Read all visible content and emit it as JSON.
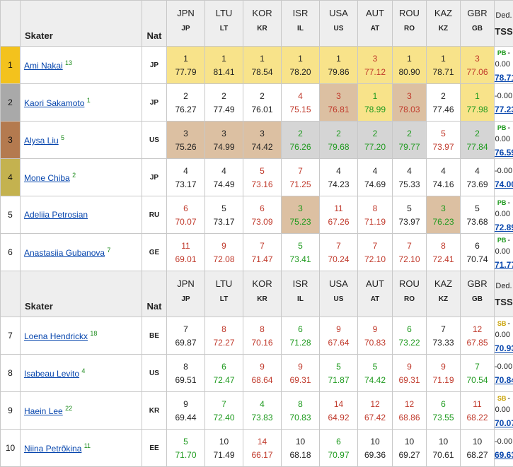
{
  "judges": [
    {
      "name": "JPN",
      "code": "JP"
    },
    {
      "name": "LTU",
      "code": "LT"
    },
    {
      "name": "KOR",
      "code": "KR"
    },
    {
      "name": "ISR",
      "code": "IL"
    },
    {
      "name": "USA",
      "code": "US"
    },
    {
      "name": "AUT",
      "code": "AT"
    },
    {
      "name": "ROU",
      "code": "RO"
    },
    {
      "name": "KAZ",
      "code": "KZ"
    },
    {
      "name": "GBR",
      "code": "GB"
    }
  ],
  "labels": {
    "skater": "Skater",
    "nat": "Nat",
    "ded": "Ded.",
    "tss": "TSS"
  },
  "colors": {
    "gold": "#f8e38a",
    "silver": "#d5d5d5",
    "bronze": "#dcc0a2",
    "rank1": "#f3c21d",
    "rank2": "#a9a9a9",
    "rank3": "#b47a4f",
    "rank4": "#c4b24f",
    "red": "#c0392b",
    "green": "#1e9a1e",
    "link": "#0645ad"
  },
  "groups": [
    {
      "rows": [
        {
          "rank": "1",
          "name": "Ami Nakai",
          "sup": "13",
          "nat": "JP",
          "badge": "PB",
          "ded": "-0.00",
          "tss": "78.71",
          "cells": [
            [
              "1",
              "77.79",
              "black",
              "gold"
            ],
            [
              "1",
              "81.41",
              "black",
              "gold"
            ],
            [
              "1",
              "78.54",
              "black",
              "gold"
            ],
            [
              "1",
              "78.20",
              "black",
              "gold"
            ],
            [
              "1",
              "79.86",
              "black",
              "gold"
            ],
            [
              "3",
              "77.12",
              "red",
              "gold"
            ],
            [
              "1",
              "80.90",
              "black",
              "gold"
            ],
            [
              "1",
              "78.71",
              "black",
              "gold"
            ],
            [
              "3",
              "77.06",
              "red",
              "gold"
            ]
          ]
        },
        {
          "rank": "2",
          "name": "Kaori Sakamoto",
          "sup": "1",
          "nat": "JP",
          "badge": "",
          "ded": "-0.00",
          "tss": "77.23",
          "cells": [
            [
              "2",
              "76.27",
              "black",
              "none"
            ],
            [
              "2",
              "77.49",
              "black",
              "none"
            ],
            [
              "2",
              "76.01",
              "black",
              "none"
            ],
            [
              "4",
              "75.15",
              "red",
              "none"
            ],
            [
              "3",
              "76.81",
              "red",
              "bronze"
            ],
            [
              "1",
              "78.99",
              "green",
              "gold"
            ],
            [
              "3",
              "78.03",
              "red",
              "bronze"
            ],
            [
              "2",
              "77.46",
              "black",
              "none"
            ],
            [
              "1",
              "77.98",
              "green",
              "gold"
            ]
          ]
        },
        {
          "rank": "3",
          "name": "Alysa Liu",
          "sup": "5",
          "nat": "US",
          "badge": "PB",
          "ded": "-0.00",
          "tss": "76.59",
          "cells": [
            [
              "3",
              "75.26",
              "black",
              "bronze"
            ],
            [
              "3",
              "74.99",
              "black",
              "bronze"
            ],
            [
              "3",
              "74.42",
              "black",
              "bronze"
            ],
            [
              "2",
              "76.26",
              "green",
              "silver"
            ],
            [
              "2",
              "79.68",
              "green",
              "silver"
            ],
            [
              "2",
              "77.20",
              "green",
              "silver"
            ],
            [
              "2",
              "79.77",
              "green",
              "silver"
            ],
            [
              "5",
              "73.97",
              "red",
              "none"
            ],
            [
              "2",
              "77.84",
              "green",
              "silver"
            ]
          ]
        },
        {
          "rank": "4",
          "name": "Mone Chiba",
          "sup": "2",
          "nat": "JP",
          "badge": "",
          "ded": "-0.00",
          "tss": "74.00",
          "cells": [
            [
              "4",
              "73.17",
              "black",
              "none"
            ],
            [
              "4",
              "74.49",
              "black",
              "none"
            ],
            [
              "5",
              "73.16",
              "red",
              "none"
            ],
            [
              "7",
              "71.25",
              "red",
              "none"
            ],
            [
              "4",
              "74.23",
              "black",
              "none"
            ],
            [
              "4",
              "74.69",
              "black",
              "none"
            ],
            [
              "4",
              "75.33",
              "black",
              "none"
            ],
            [
              "4",
              "74.16",
              "black",
              "none"
            ],
            [
              "4",
              "73.69",
              "black",
              "none"
            ]
          ]
        },
        {
          "rank": "5",
          "name": "Adeliia Petrosian",
          "sup": "",
          "nat": "RU",
          "badge": "PB",
          "ded": "-0.00",
          "tss": "72.89",
          "cells": [
            [
              "6",
              "70.07",
              "red",
              "none"
            ],
            [
              "5",
              "73.17",
              "black",
              "none"
            ],
            [
              "6",
              "73.09",
              "red",
              "none"
            ],
            [
              "3",
              "75.23",
              "green",
              "bronze"
            ],
            [
              "11",
              "67.26",
              "red",
              "none"
            ],
            [
              "8",
              "71.19",
              "red",
              "none"
            ],
            [
              "5",
              "73.97",
              "black",
              "none"
            ],
            [
              "3",
              "76.23",
              "green",
              "bronze"
            ],
            [
              "5",
              "73.68",
              "black",
              "none"
            ]
          ]
        },
        {
          "rank": "6",
          "name": "Anastasiia Gubanova",
          "sup": "7",
          "nat": "GE",
          "badge": "PB",
          "ded": "-0.00",
          "tss": "71.77",
          "cells": [
            [
              "11",
              "69.01",
              "red",
              "none"
            ],
            [
              "9",
              "72.08",
              "red",
              "none"
            ],
            [
              "7",
              "71.47",
              "red",
              "none"
            ],
            [
              "5",
              "73.41",
              "green",
              "none"
            ],
            [
              "7",
              "70.24",
              "red",
              "none"
            ],
            [
              "7",
              "72.10",
              "red",
              "none"
            ],
            [
              "7",
              "72.10",
              "red",
              "none"
            ],
            [
              "8",
              "72.41",
              "red",
              "none"
            ],
            [
              "6",
              "70.74",
              "black",
              "none"
            ]
          ]
        }
      ]
    },
    {
      "rows": [
        {
          "rank": "7",
          "name": "Loena Hendrickx",
          "sup": "18",
          "nat": "BE",
          "badge": "SB",
          "ded": "-0.00",
          "tss": "70.93",
          "cells": [
            [
              "7",
              "69.87",
              "black",
              "none"
            ],
            [
              "8",
              "72.27",
              "red",
              "none"
            ],
            [
              "8",
              "70.16",
              "red",
              "none"
            ],
            [
              "6",
              "71.28",
              "green",
              "none"
            ],
            [
              "9",
              "67.64",
              "red",
              "none"
            ],
            [
              "9",
              "70.83",
              "red",
              "none"
            ],
            [
              "6",
              "73.22",
              "green",
              "none"
            ],
            [
              "7",
              "73.33",
              "black",
              "none"
            ],
            [
              "12",
              "67.85",
              "red",
              "none"
            ]
          ]
        },
        {
          "rank": "8",
          "name": "Isabeau Levito",
          "sup": "4",
          "nat": "US",
          "badge": "",
          "ded": "-0.00",
          "tss": "70.84",
          "cells": [
            [
              "8",
              "69.51",
              "black",
              "none"
            ],
            [
              "6",
              "72.47",
              "green",
              "none"
            ],
            [
              "9",
              "68.64",
              "red",
              "none"
            ],
            [
              "9",
              "69.31",
              "red",
              "none"
            ],
            [
              "5",
              "71.87",
              "green",
              "none"
            ],
            [
              "5",
              "74.42",
              "green",
              "none"
            ],
            [
              "9",
              "69.31",
              "red",
              "none"
            ],
            [
              "9",
              "71.19",
              "red",
              "none"
            ],
            [
              "7",
              "70.54",
              "green",
              "none"
            ]
          ]
        },
        {
          "rank": "9",
          "name": "Haein Lee",
          "sup": "22",
          "nat": "KR",
          "badge": "SB",
          "ded": "-0.00",
          "tss": "70.07",
          "cells": [
            [
              "9",
              "69.44",
              "black",
              "none"
            ],
            [
              "7",
              "72.40",
              "green",
              "none"
            ],
            [
              "4",
              "73.83",
              "green",
              "none"
            ],
            [
              "8",
              "70.83",
              "green",
              "none"
            ],
            [
              "14",
              "64.92",
              "red",
              "none"
            ],
            [
              "12",
              "67.42",
              "red",
              "none"
            ],
            [
              "12",
              "68.86",
              "red",
              "none"
            ],
            [
              "6",
              "73.55",
              "green",
              "none"
            ],
            [
              "11",
              "68.22",
              "red",
              "none"
            ]
          ]
        },
        {
          "rank": "10",
          "name": "Niina Petrõkina",
          "sup": "11",
          "nat": "EE",
          "badge": "",
          "ded": "-0.00",
          "tss": "69.63",
          "cells": [
            [
              "5",
              "71.70",
              "green",
              "none"
            ],
            [
              "10",
              "71.49",
              "black",
              "none"
            ],
            [
              "14",
              "66.17",
              "red",
              "none"
            ],
            [
              "10",
              "68.18",
              "black",
              "none"
            ],
            [
              "6",
              "70.97",
              "green",
              "none"
            ],
            [
              "10",
              "69.36",
              "black",
              "none"
            ],
            [
              "10",
              "69.27",
              "black",
              "none"
            ],
            [
              "10",
              "70.61",
              "black",
              "none"
            ],
            [
              "10",
              "68.27",
              "black",
              "none"
            ]
          ]
        }
      ]
    }
  ]
}
